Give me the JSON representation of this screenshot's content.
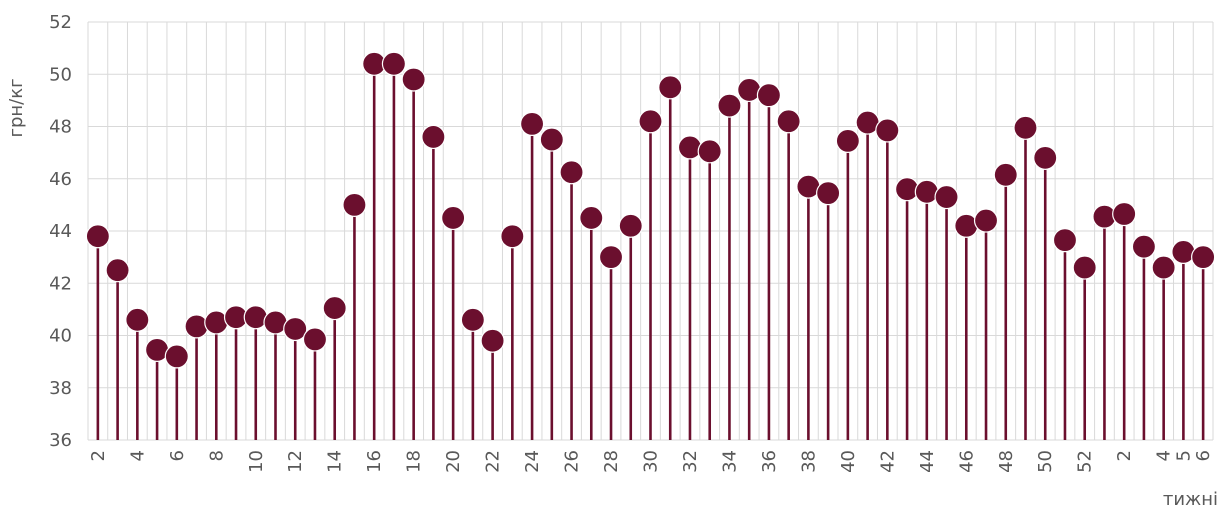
{
  "chart_data": {
    "type": "lollipop",
    "ylabel": "грн/кг",
    "xlabel": "тижні",
    "ylim": [
      36,
      52
    ],
    "yticks": [
      36,
      38,
      40,
      42,
      44,
      46,
      48,
      50,
      52
    ],
    "grid": true,
    "colors": {
      "series": "#6b0f2e",
      "grid": "#d9d9d9",
      "text": "#595959"
    },
    "x_weeks": [
      2,
      3,
      4,
      5,
      6,
      7,
      8,
      9,
      10,
      11,
      12,
      13,
      14,
      15,
      16,
      17,
      18,
      19,
      20,
      21,
      22,
      23,
      24,
      25,
      26,
      27,
      28,
      29,
      30,
      31,
      32,
      33,
      34,
      35,
      36,
      37,
      38,
      39,
      40,
      41,
      42,
      43,
      44,
      45,
      46,
      47,
      48,
      49,
      50,
      51,
      52,
      1,
      2,
      3,
      4,
      5,
      6
    ],
    "x_tick_labels": [
      "2",
      "",
      "4",
      "",
      "6",
      "",
      "8",
      "",
      "10",
      "",
      "12",
      "",
      "14",
      "",
      "16",
      "",
      "18",
      "",
      "20",
      "",
      "22",
      "",
      "24",
      "",
      "26",
      "",
      "28",
      "",
      "30",
      "",
      "32",
      "",
      "34",
      "",
      "36",
      "",
      "38",
      "",
      "40",
      "",
      "42",
      "",
      "44",
      "",
      "46",
      "",
      "48",
      "",
      "50",
      "",
      "52",
      "",
      "2",
      "",
      "4",
      "5",
      "6"
    ],
    "values": [
      43.8,
      42.5,
      40.6,
      39.45,
      39.2,
      40.35,
      40.5,
      40.7,
      40.7,
      40.5,
      40.25,
      39.85,
      41.05,
      45.0,
      50.4,
      50.4,
      49.8,
      47.6,
      44.5,
      40.6,
      39.8,
      43.8,
      48.1,
      47.5,
      46.25,
      44.5,
      43.0,
      44.2,
      48.2,
      49.5,
      47.2,
      47.05,
      48.8,
      49.4,
      49.2,
      48.2,
      45.7,
      45.45,
      47.45,
      48.15,
      47.85,
      45.6,
      45.5,
      45.3,
      44.2,
      44.4,
      46.15,
      47.95,
      46.8,
      43.65,
      42.6,
      44.55,
      44.65,
      43.4,
      42.6,
      43.2,
      43.0
    ]
  }
}
